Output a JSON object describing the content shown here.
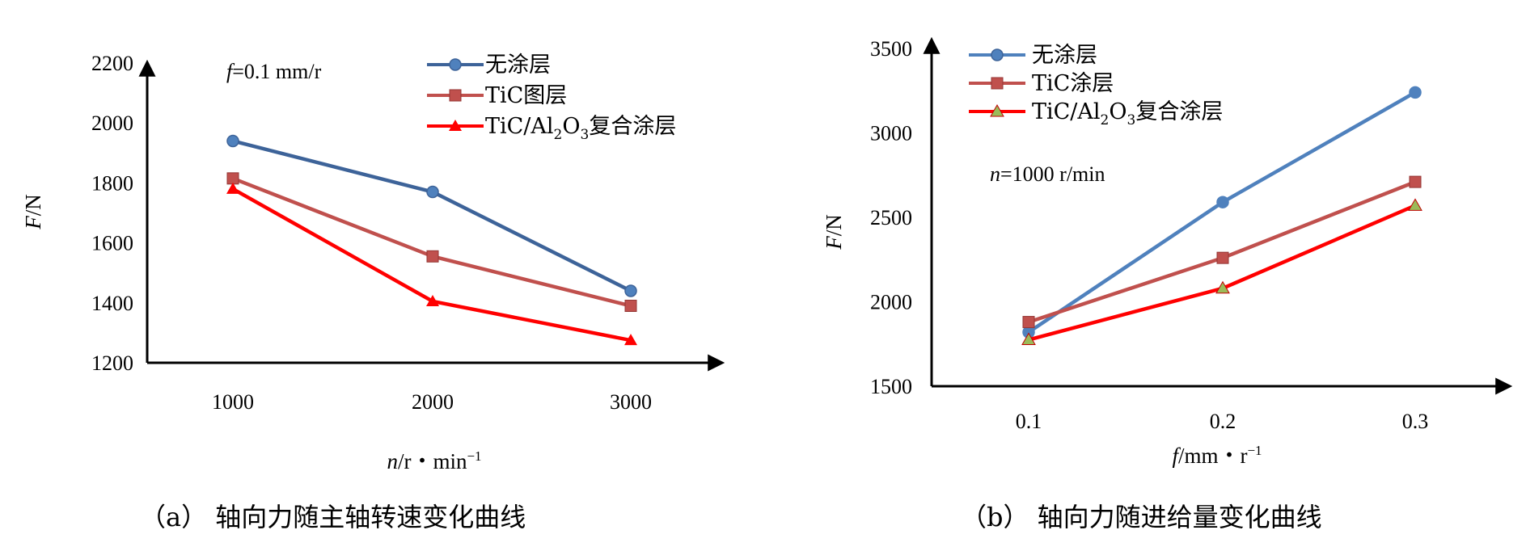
{
  "chart_data": [
    {
      "type": "line",
      "caption": "（a） 轴向力随主轴转速变化曲线",
      "annotation": "f=0.1 mm/r",
      "xlabel": "n/r・min⁻¹",
      "ylabel": "F/N",
      "categories": [
        "1000",
        "2000",
        "3000"
      ],
      "x": [
        1000,
        2000,
        3000
      ],
      "ylim": [
        1200,
        2200
      ],
      "yticks": [
        "1200",
        "1400",
        "1600",
        "1800",
        "2000",
        "2200"
      ],
      "legend_position": "top-right",
      "series": [
        {
          "name": "无涂层",
          "color": "#3d6399",
          "marker": "circle",
          "values": [
            1940,
            1770,
            1440
          ]
        },
        {
          "name": "TiC图层",
          "color": "#c0504d",
          "marker": "square",
          "values": [
            1815,
            1555,
            1390
          ]
        },
        {
          "name": "TiC/Al₂O₃复合涂层",
          "color": "#ff0000",
          "marker": "triangle",
          "values": [
            1780,
            1405,
            1275
          ]
        }
      ]
    },
    {
      "type": "line",
      "caption": "（b） 轴向力随进给量变化曲线",
      "annotation": "n=1000 r/min",
      "xlabel": "f/mm・r⁻¹",
      "ylabel": "F/N",
      "categories": [
        "0.1",
        "0.2",
        "0.3"
      ],
      "x": [
        0.1,
        0.2,
        0.3
      ],
      "ylim": [
        1500,
        3500
      ],
      "yticks": [
        "1500",
        "2000",
        "2500",
        "3000",
        "3500"
      ],
      "legend_position": "top-left",
      "series": [
        {
          "name": "无涂层",
          "color": "#4f81bd",
          "marker": "circle",
          "values": [
            1820,
            2590,
            3240
          ]
        },
        {
          "name": "TiC涂层",
          "color": "#c0504d",
          "marker": "square",
          "values": [
            1880,
            2260,
            2710
          ]
        },
        {
          "name": "TiC/Al₂O₃复合涂层",
          "color": "#ff0000",
          "marker": "triangle",
          "values": [
            1775,
            2080,
            2570
          ]
        }
      ]
    }
  ]
}
